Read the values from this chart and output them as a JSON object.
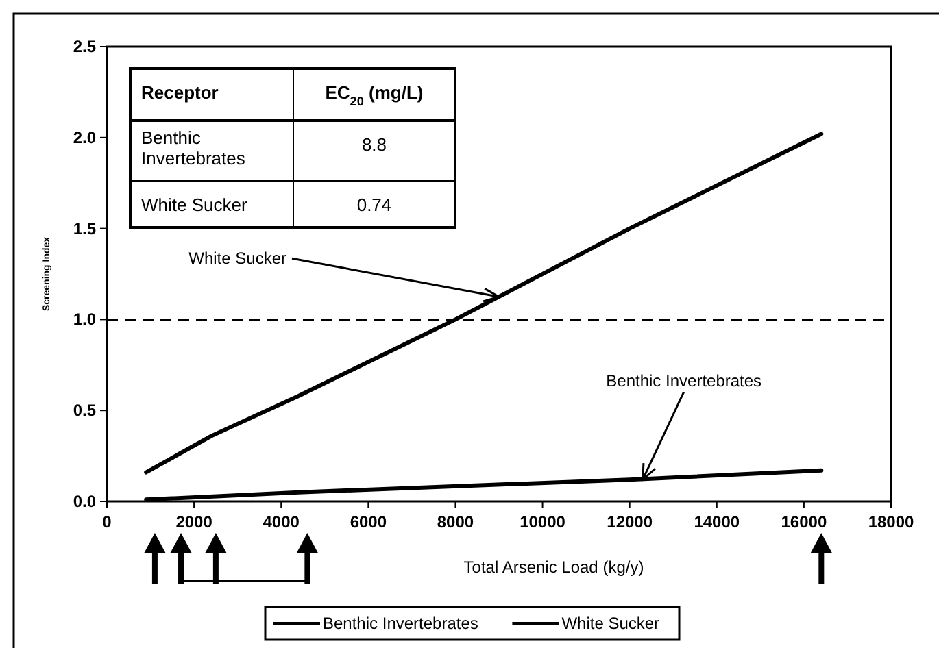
{
  "chart_data": {
    "type": "line",
    "xlabel": "Total Arsenic Load (kg/y)",
    "ylabel": "Screening Index",
    "xlim": [
      0,
      18000
    ],
    "xticks": [
      0,
      2000,
      4000,
      6000,
      8000,
      10000,
      12000,
      14000,
      16000,
      18000
    ],
    "ylim": [
      0,
      2.5
    ],
    "yticks": [
      {
        "value": 0,
        "label": "0.0"
      },
      {
        "value": 0.5,
        "label": "0.5"
      },
      {
        "value": 1,
        "label": "1.0"
      },
      {
        "value": 1.5,
        "label": "1.5"
      },
      {
        "value": 2,
        "label": "2.0"
      },
      {
        "value": 2.5,
        "label": "2.5"
      }
    ],
    "series": [
      {
        "name": "Benthic Invertebrates",
        "color": "#000000",
        "x": [
          900,
          4400,
          12000,
          16400
        ],
        "values": [
          0.01,
          0.05,
          0.12,
          0.17
        ]
      },
      {
        "name": "White Sucker",
        "color": "#000000",
        "x": [
          900,
          1500,
          2400,
          4400,
          8000,
          12000,
          16400
        ],
        "values": [
          0.16,
          0.24,
          0.36,
          0.58,
          1.0,
          1.5,
          2.02
        ]
      }
    ],
    "ref_lines": [
      {
        "axis": "y",
        "value": 1.0,
        "line_style": "dashed",
        "color": "#000000"
      }
    ],
    "annotations": [
      {
        "text": "White Sucker",
        "x": 9000,
        "y": 1.125
      },
      {
        "text": "Benthic Invertebrates",
        "x": 12300,
        "y": 0.12
      },
      "Receptor",
      "EC$_{20}$ (mg/L)",
      "Benthic Invertebrates",
      "8.8",
      "White Sucker",
      "0.74"
    ],
    "legend": "bottom",
    "grid": false,
    "line_style": "solid"
  }
}
